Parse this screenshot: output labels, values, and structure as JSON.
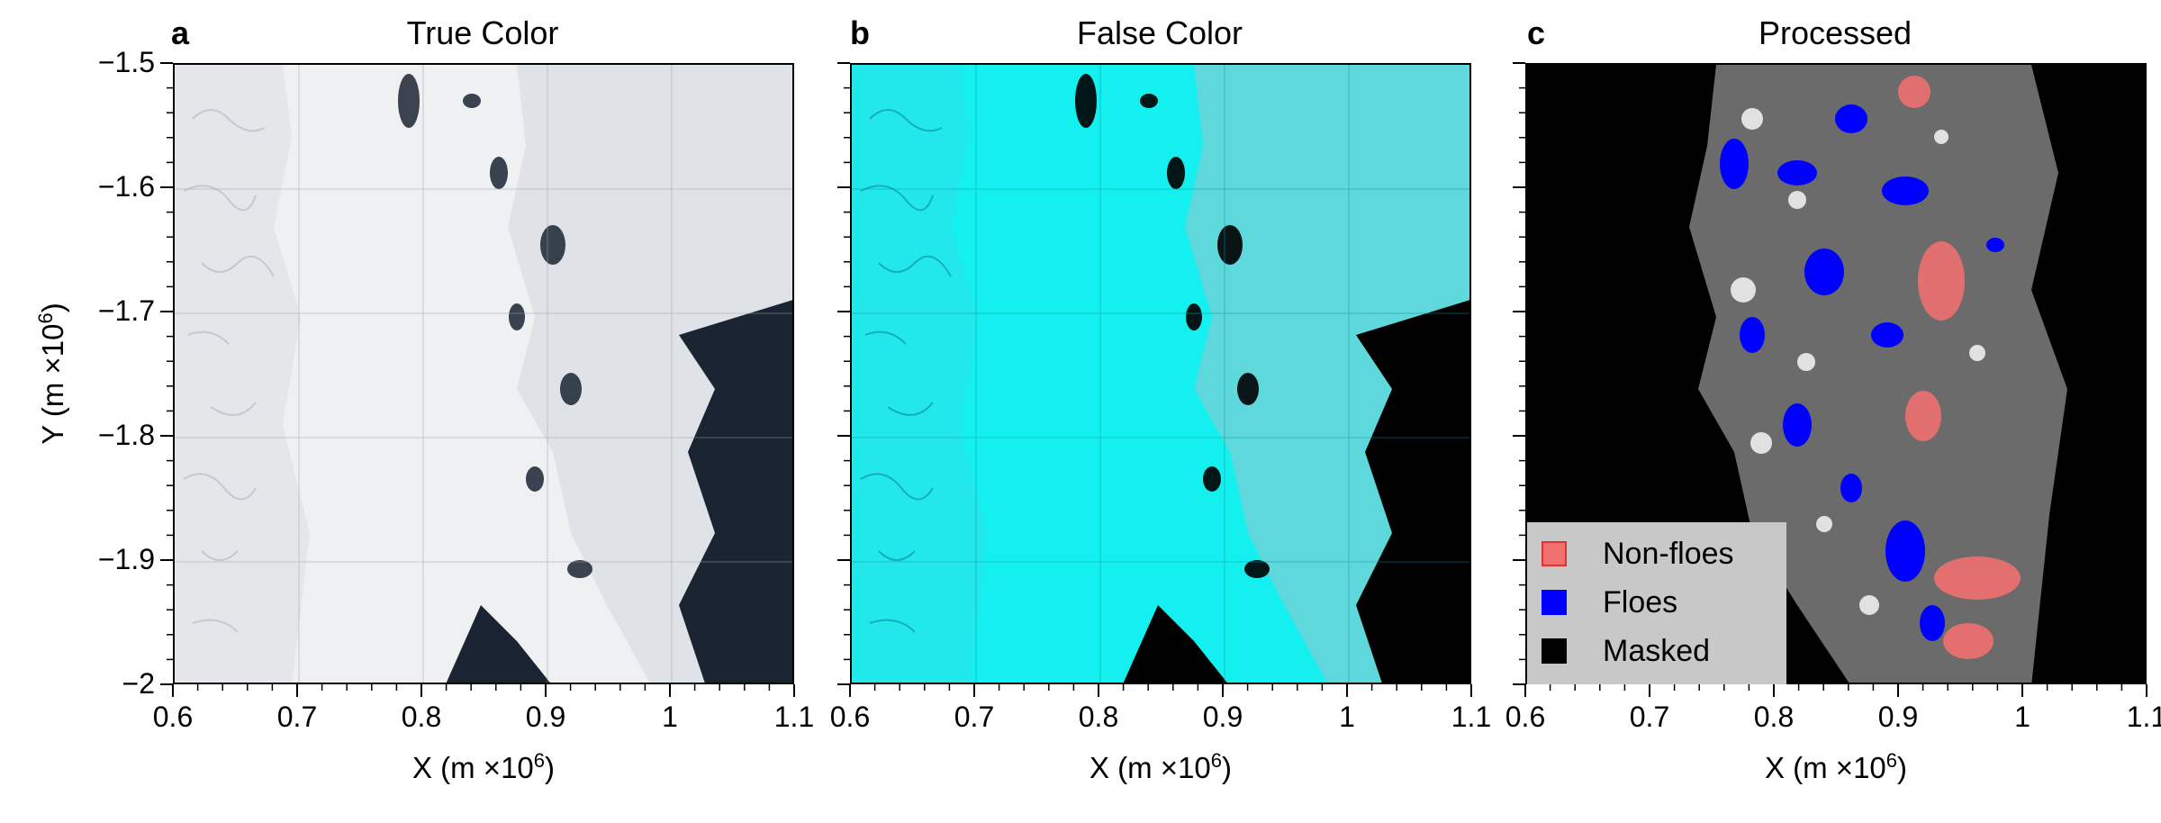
{
  "panels": [
    {
      "letter": "a",
      "title": "True Color"
    },
    {
      "letter": "b",
      "title": "False Color"
    },
    {
      "letter": "c",
      "title": "Processed"
    }
  ],
  "axes": {
    "x_label_prefix": "X (m ×10",
    "x_label_exp": "6",
    "x_label_suffix": ")",
    "y_label_prefix": "Y (m ×10",
    "y_label_exp": "6",
    "y_label_suffix": ")",
    "x_ticks": [
      "0.6",
      "0.7",
      "0.8",
      "0.9",
      "1",
      "1.1"
    ],
    "y_ticks": [
      "−1.5",
      "−1.6",
      "−1.7",
      "−1.8",
      "−1.9",
      "−2"
    ],
    "xlim": [
      0.6,
      1.1
    ],
    "ylim": [
      -2.0,
      -1.5
    ]
  },
  "legend": {
    "items": [
      {
        "label": "Non-floes",
        "color": "#f07070"
      },
      {
        "label": "Floes",
        "color": "#0000ff"
      },
      {
        "label": "Masked",
        "color": "#000000"
      }
    ]
  },
  "colors": {
    "true_land": "#eef0f2",
    "true_ocean": "#1a2433",
    "false_land": "#14f0f0",
    "false_ocean": "#000000",
    "processed_bg": "#000000",
    "floe_blue": "#0000ff",
    "nonfloe_red": "#f07070"
  }
}
